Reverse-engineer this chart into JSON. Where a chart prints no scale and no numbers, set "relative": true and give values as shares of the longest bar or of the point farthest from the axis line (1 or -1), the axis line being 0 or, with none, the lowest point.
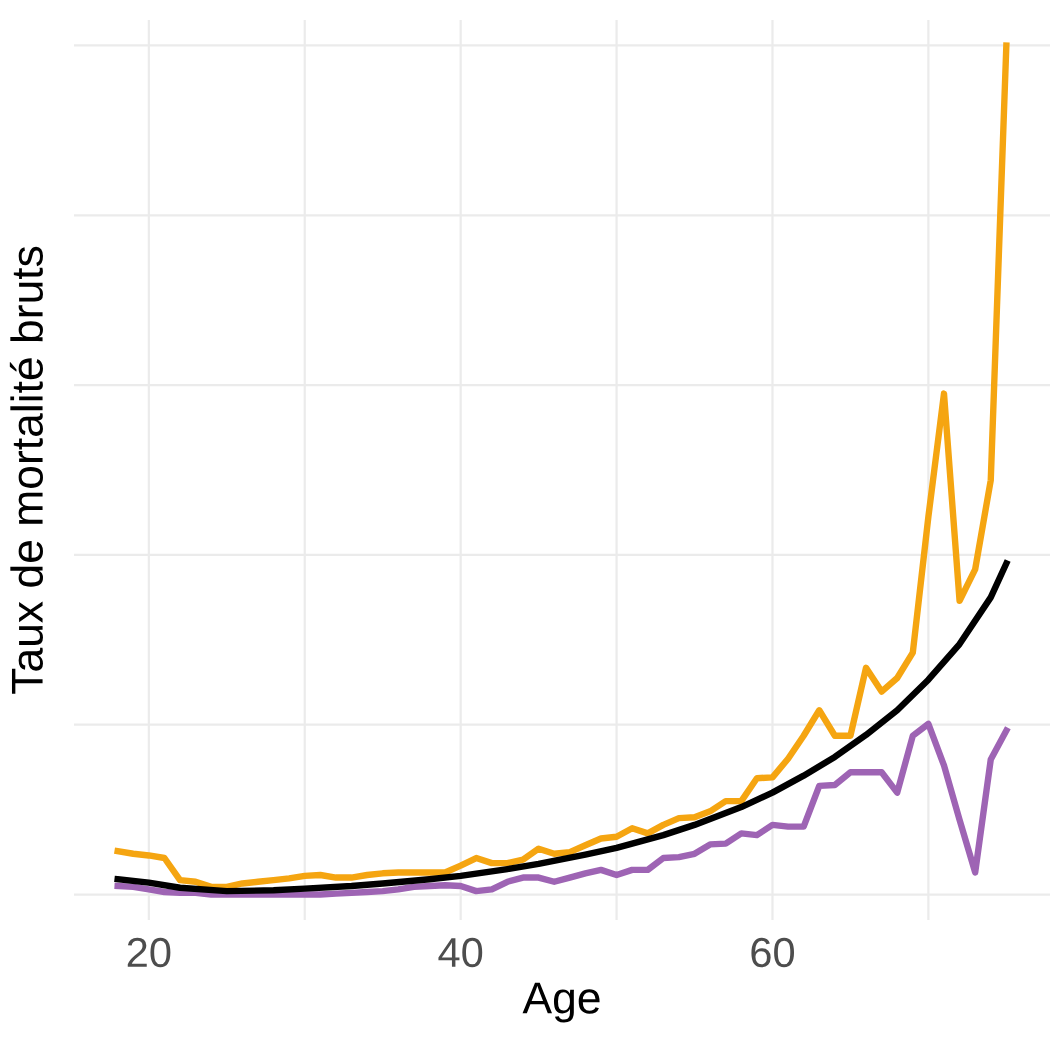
{
  "chart_data": {
    "type": "line",
    "relative": true,
    "xlabel": "Age",
    "ylabel": "Taux de mortalité bruts",
    "xlim": [
      15.2,
      77.8
    ],
    "xticks": [
      20,
      {
        "value": 30,
        "label": null
      },
      40,
      {
        "value": 50,
        "label": null
      },
      60,
      {
        "value": 70,
        "label": null
      }
    ],
    "grid": true,
    "x": [
      18,
      19,
      20,
      21,
      22,
      23,
      24,
      25,
      26,
      27,
      28,
      29,
      30,
      31,
      32,
      33,
      34,
      35,
      36,
      37,
      38,
      39,
      40,
      41,
      42,
      43,
      44,
      45,
      46,
      47,
      48,
      49,
      50,
      51,
      52,
      53,
      54,
      55,
      56,
      57,
      58,
      59,
      60,
      61,
      62,
      63,
      64,
      65,
      66,
      67,
      68,
      69,
      70,
      71,
      72,
      73,
      74,
      75
    ],
    "series": [
      {
        "color": "#f5a511",
        "values": [
          0.051,
          0.048,
          0.046,
          0.043,
          0.017,
          0.015,
          0.009,
          0.009,
          0.013,
          0.015,
          0.017,
          0.019,
          0.022,
          0.023,
          0.02,
          0.02,
          0.023,
          0.025,
          0.026,
          0.026,
          0.026,
          0.026,
          0.034,
          0.043,
          0.037,
          0.037,
          0.041,
          0.054,
          0.048,
          0.05,
          0.058,
          0.066,
          0.068,
          0.078,
          0.072,
          0.082,
          0.09,
          0.091,
          0.098,
          0.11,
          0.11,
          0.137,
          0.138,
          0.16,
          0.187,
          0.217,
          0.187,
          0.187,
          0.267,
          0.239,
          0.255,
          0.285,
          0.445,
          0.59,
          0.346,
          0.383,
          0.488,
          1.0
        ]
      },
      {
        "color": "#9e64b4",
        "values": [
          0.01,
          0.009,
          0.006,
          0.003,
          0.002,
          0.002,
          0,
          0,
          0,
          0,
          0,
          0,
          0,
          0,
          0.001,
          0.002,
          0.003,
          0.004,
          0.006,
          0.009,
          0.01,
          0.011,
          0.01,
          0.004,
          0.006,
          0.015,
          0.02,
          0.02,
          0.015,
          0.02,
          0.025,
          0.029,
          0.023,
          0.029,
          0.029,
          0.043,
          0.044,
          0.048,
          0.059,
          0.06,
          0.072,
          0.07,
          0.082,
          0.08,
          0.08,
          0.128,
          0.129,
          0.144,
          0.144,
          0.144,
          0.12,
          0.187,
          0.201,
          0.152,
          0.088,
          0.026,
          0.159,
          0.193
        ]
      },
      {
        "color": "#000000",
        "x": [
          18,
          20,
          22,
          25,
          28,
          30,
          33,
          35,
          38,
          40,
          43,
          45,
          48,
          50,
          53,
          55,
          58,
          60,
          62,
          64,
          66,
          68,
          70,
          72,
          74,
          75
        ],
        "values": [
          0.018,
          0.014,
          0.008,
          0.004,
          0.005,
          0.007,
          0.01,
          0.013,
          0.018,
          0.022,
          0.03,
          0.036,
          0.047,
          0.055,
          0.07,
          0.082,
          0.103,
          0.12,
          0.14,
          0.162,
          0.188,
          0.217,
          0.253,
          0.295,
          0.35,
          0.39
        ]
      }
    ]
  }
}
